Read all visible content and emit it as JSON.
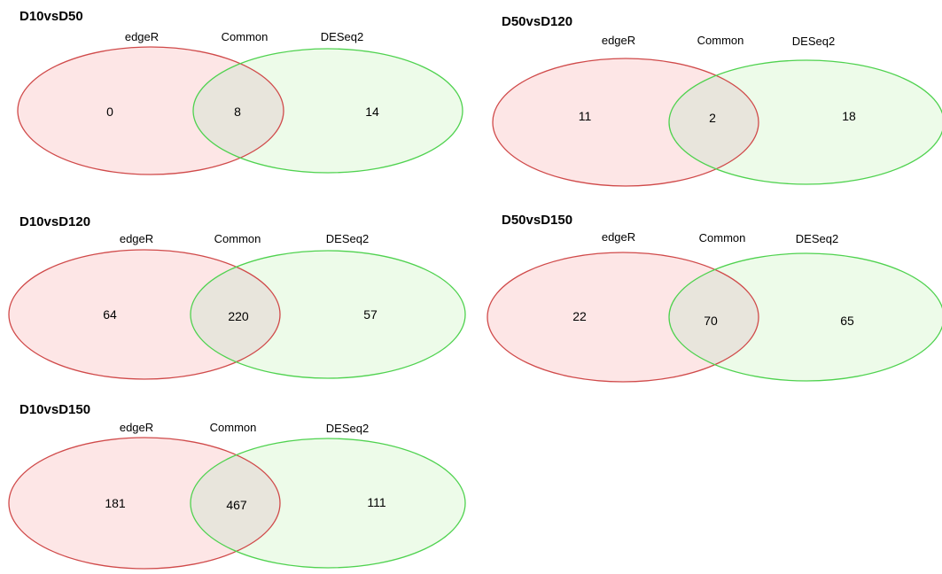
{
  "colors": {
    "left_stroke": "#d04a4a",
    "left_fill": "#fde6e6",
    "right_stroke": "#4fd24f",
    "right_fill": "#edfbe9",
    "overlap_fill": "#e8e5dc"
  },
  "venns": [
    {
      "title": "D10vsD50",
      "left_label": "edgeR",
      "common_label": "Common",
      "right_label": "DESeq2",
      "left_only": "0",
      "common": "8",
      "right_only": "14"
    },
    {
      "title": "D50vsD120",
      "left_label": "edgeR",
      "common_label": "Common",
      "right_label": "DESeq2",
      "left_only": "11",
      "common": "2",
      "right_only": "18"
    },
    {
      "title": "D10vsD120",
      "left_label": "edgeR",
      "common_label": "Common",
      "right_label": "DESeq2",
      "left_only": "64",
      "common": "220",
      "right_only": "57"
    },
    {
      "title": "D50vsD150",
      "left_label": "edgeR",
      "common_label": "Common",
      "right_label": "DESeq2",
      "left_only": "22",
      "common": "70",
      "right_only": "65"
    },
    {
      "title": "D10vsD150",
      "left_label": "edgeR",
      "common_label": "Common",
      "right_label": "DESeq2",
      "left_only": "181",
      "common": "467",
      "right_only": "111"
    }
  ]
}
